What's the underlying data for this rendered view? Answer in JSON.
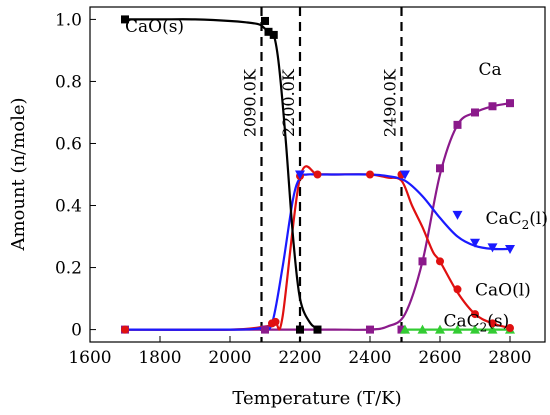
{
  "chart_data": {
    "type": "line",
    "xlabel": "Temperature (T/K)",
    "ylabel": "Amount (n/mole)",
    "xlim": [
      1600,
      2900
    ],
    "ylim": [
      -0.04,
      1.04
    ],
    "x_ticks": [
      1600,
      1800,
      2000,
      2200,
      2400,
      2600,
      2800
    ],
    "y_ticks": [
      0,
      0.2,
      0.4,
      0.6,
      0.8,
      1.0
    ],
    "x_tick_labels": [
      "1600",
      "1800",
      "2000",
      "2200",
      "2400",
      "2600",
      "2800"
    ],
    "y_tick_labels": [
      "0",
      "0.2",
      "0.4",
      "0.6",
      "0.8",
      "1.0"
    ],
    "grid": false,
    "series": [
      {
        "name": "CaO(s)",
        "color": "#000000",
        "marker": "square",
        "x": [
          1700,
          1800,
          1900,
          2000,
          2050,
          2080,
          2090,
          2100,
          2110,
          2125,
          2140,
          2160,
          2180,
          2200,
          2230,
          2260
        ],
        "y": [
          1.0,
          1.0,
          1.0,
          0.995,
          0.99,
          0.985,
          0.98,
          0.97,
          0.96,
          0.95,
          0.85,
          0.6,
          0.3,
          0.1,
          0.02,
          0.0
        ],
        "marker_x": [
          1700,
          2100,
          2110,
          2125,
          2200,
          2250
        ],
        "marker_y": [
          1.0,
          0.995,
          0.96,
          0.95,
          0.0,
          0.0
        ]
      },
      {
        "name": "CaC2(l)",
        "color": "#1a1aff",
        "marker": "triangle-down",
        "x": [
          1700,
          2000,
          2090,
          2120,
          2150,
          2180,
          2200,
          2220,
          2250,
          2300,
          2400,
          2450,
          2500,
          2550,
          2600,
          2650,
          2700,
          2750,
          2800
        ],
        "y": [
          0.0,
          0.0,
          0.005,
          0.02,
          0.2,
          0.42,
          0.49,
          0.5,
          0.5,
          0.5,
          0.5,
          0.495,
          0.48,
          0.43,
          0.36,
          0.3,
          0.27,
          0.26,
          0.26
        ],
        "marker_x": [
          2200,
          2500,
          2650,
          2700,
          2750,
          2800
        ],
        "marker_y": [
          0.5,
          0.5,
          0.37,
          0.28,
          0.265,
          0.26
        ]
      },
      {
        "name": "CaO(l)",
        "color": "#e01010",
        "marker": "circle",
        "x": [
          1700,
          2000,
          2100,
          2130,
          2150,
          2200,
          2250,
          2300,
          2400,
          2450,
          2490,
          2520,
          2550,
          2580,
          2600,
          2650,
          2700,
          2750,
          2800
        ],
        "y": [
          0.0,
          0.0,
          0.01,
          0.02,
          0.04,
          0.49,
          0.5,
          0.5,
          0.5,
          0.49,
          0.48,
          0.4,
          0.33,
          0.25,
          0.22,
          0.12,
          0.05,
          0.02,
          0.005
        ],
        "marker_x": [
          1700,
          2120,
          2130,
          2200,
          2250,
          2400,
          2490,
          2600,
          2650,
          2700,
          2750,
          2800
        ],
        "marker_y": [
          0.0,
          0.02,
          0.025,
          0.495,
          0.5,
          0.5,
          0.5,
          0.22,
          0.13,
          0.05,
          0.02,
          0.005
        ]
      },
      {
        "name": "Ca",
        "color": "#8b1a8b",
        "marker": "square",
        "x": [
          1700,
          2000,
          2100,
          2200,
          2300,
          2400,
          2450,
          2500,
          2550,
          2600,
          2650,
          2700,
          2750,
          2800
        ],
        "y": [
          0.0,
          0.0,
          0.0,
          0.0,
          0.0,
          0.0,
          0.01,
          0.05,
          0.22,
          0.5,
          0.66,
          0.7,
          0.72,
          0.73
        ],
        "marker_x": [
          1700,
          2100,
          2200,
          2250,
          2400,
          2490,
          2550,
          2600,
          2650,
          2700,
          2750,
          2800
        ],
        "marker_y": [
          0.0,
          0.0,
          0.0,
          0.0,
          0.0,
          0.0,
          0.22,
          0.52,
          0.66,
          0.7,
          0.72,
          0.73
        ]
      },
      {
        "name": "CaC2(s)",
        "color": "#33cc33",
        "marker": "triangle-up",
        "x": [
          2490,
          2550,
          2600,
          2650,
          2700,
          2750,
          2800
        ],
        "y": [
          0.0,
          0.0,
          0.0,
          0.0,
          0.0,
          0.0,
          0.0
        ],
        "marker_x": [
          2500,
          2550,
          2600,
          2650,
          2700,
          2750,
          2800
        ],
        "marker_y": [
          0.0,
          0.0,
          0.0,
          0.0,
          0.0,
          0.0,
          0.0
        ]
      }
    ],
    "vlines": [
      {
        "x": 2090,
        "label": "2090.0K"
      },
      {
        "x": 2200,
        "label": "2200.0K"
      },
      {
        "x": 2490,
        "label": "2490.0K"
      }
    ],
    "annotations": [
      {
        "text": "CaO(s)",
        "sub": "",
        "tail": "",
        "x": 1700,
        "y": 0.96
      },
      {
        "text": "Ca",
        "sub": "",
        "tail": "",
        "x": 2710,
        "y": 0.82
      },
      {
        "text": "CaC",
        "sub": "2",
        "tail": "(l)",
        "x": 2730,
        "y": 0.34
      },
      {
        "text": "CaO(l)",
        "sub": "",
        "tail": "",
        "x": 2700,
        "y": 0.11
      },
      {
        "text": "CaC",
        "sub": "2",
        "tail": "(s)",
        "x": 2610,
        "y": 0.01
      }
    ]
  }
}
